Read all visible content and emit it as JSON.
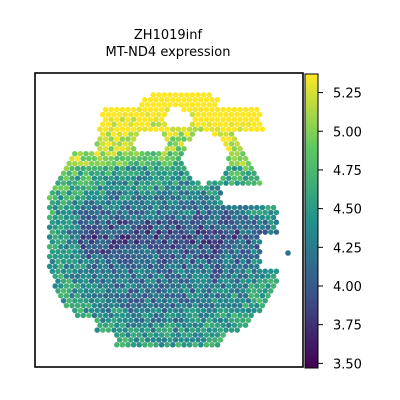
{
  "chart_data": {
    "type": "scatter",
    "title": [
      "ZH1019inf",
      "MT-ND4 expression"
    ],
    "colormap": "viridis",
    "color_stops": [
      "#440154",
      "#3b528b",
      "#21918c",
      "#5ec962",
      "#fde725"
    ],
    "colorbar": {
      "range": [
        3.47,
        5.37
      ],
      "ticks": [
        3.5,
        3.75,
        4.0,
        4.25,
        4.5,
        4.75,
        5.0,
        5.25
      ],
      "tick_labels": [
        "3.50",
        "3.75",
        "4.00",
        "4.25",
        "4.50",
        "4.75",
        "5.00",
        "5.25"
      ]
    },
    "xticks": [],
    "yticks": [],
    "grid": false,
    "legend": "colorbar-right",
    "spot_pattern": "hexagonal spatial transcriptomics spots within a tissue section; values range about 3.5–5.35, higher (yellow-green) at the top and left rim, lower (blue) in the center band"
  }
}
